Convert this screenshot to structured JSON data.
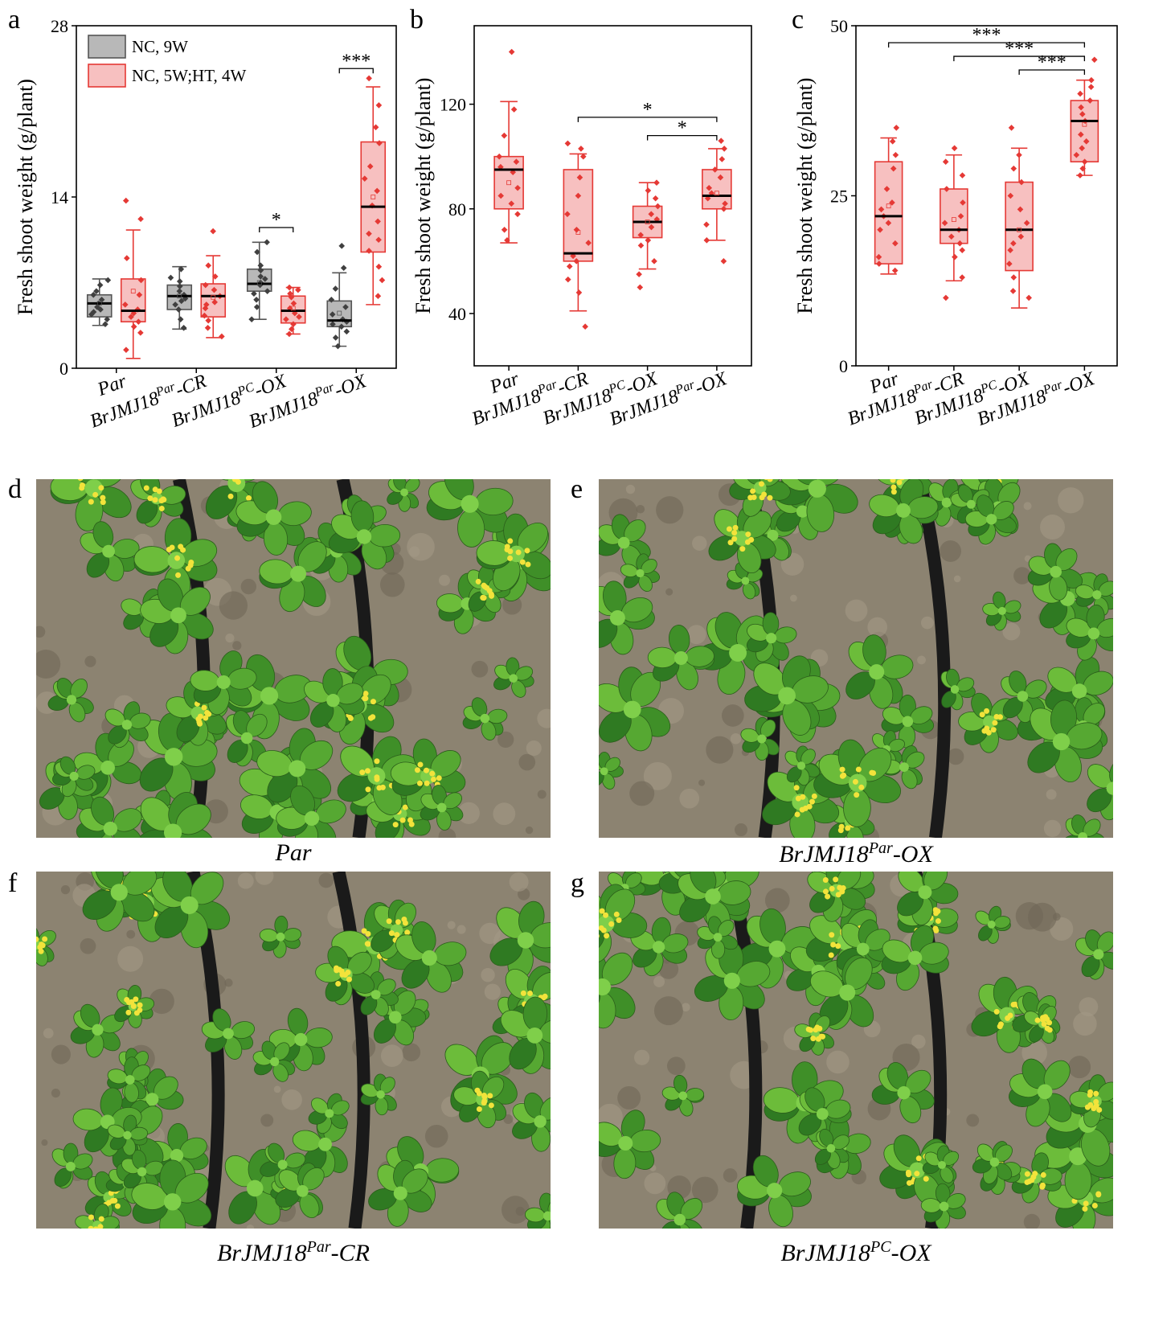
{
  "panels": {
    "a": "a",
    "b": "b",
    "c": "c",
    "d": "d",
    "e": "e",
    "f": "f",
    "g": "g"
  },
  "colors": {
    "gray_fill": "#b8b8b8",
    "gray_stroke": "#555555",
    "gray_point": "#404040",
    "red_fill": "#f7c0c0",
    "red_stroke": "#e53935",
    "red_point": "#e53935"
  },
  "photo_captions": {
    "d": {
      "base": "Par",
      "sup": "",
      "rest": ""
    },
    "e": {
      "base": "BrJMJ18",
      "sup": "Par",
      "rest": "-OX"
    },
    "f": {
      "base": "BrJMJ18",
      "sup": "Par",
      "rest": "-CR"
    },
    "g": {
      "base": "BrJMJ18",
      "sup": "PC",
      "rest": "-OX"
    }
  },
  "chart_data": [
    {
      "panel": "a",
      "type": "box",
      "ylabel": "Fresh shoot weight (g/plant)",
      "ylim": [
        0,
        28
      ],
      "yticks": [
        0,
        14,
        28
      ],
      "categories": [
        {
          "base": "Par",
          "sup": "",
          "rest": ""
        },
        {
          "base": "BrJMJ18",
          "sup": "Par",
          "rest": "-CR"
        },
        {
          "base": "BrJMJ18",
          "sup": "PC",
          "rest": "-OX"
        },
        {
          "base": "BrJMJ18",
          "sup": "Par",
          "rest": "-OX"
        }
      ],
      "legend": {
        "position": "top-left",
        "entries": [
          "NC, 9W",
          "NC, 5W;HT, 4W"
        ]
      },
      "series": [
        {
          "name": "NC, 9W",
          "color": "gray",
          "boxes": [
            {
              "min": 3.5,
              "q1": 4.2,
              "median": 5.3,
              "q3": 6.0,
              "max": 7.3,
              "mean": 5.3,
              "points": [
                4.0,
                4.4,
                4.8,
                5.0,
                5.3,
                5.6,
                6.0,
                6.3,
                6.8,
                7.2,
                3.6,
                4.6
              ]
            },
            {
              "min": 3.2,
              "q1": 4.8,
              "median": 5.9,
              "q3": 6.8,
              "max": 8.3,
              "mean": 5.9,
              "points": [
                3.3,
                4.0,
                4.8,
                5.2,
                5.7,
                6.0,
                6.3,
                6.7,
                7.1,
                7.4,
                8.1,
                5.5
              ]
            },
            {
              "min": 4.0,
              "q1": 6.3,
              "median": 6.9,
              "q3": 8.1,
              "max": 10.3,
              "mean": 7.0,
              "points": [
                4.0,
                5.0,
                5.6,
                6.3,
                6.8,
                7.0,
                7.5,
                8.0,
                8.4,
                9.5,
                10.3,
                7.3,
                6.1
              ]
            },
            {
              "min": 1.8,
              "q1": 3.4,
              "median": 3.9,
              "q3": 5.5,
              "max": 7.8,
              "mean": 4.5,
              "points": [
                1.8,
                2.5,
                3.0,
                3.4,
                3.8,
                4.0,
                4.4,
                5.0,
                5.6,
                6.5,
                8.2,
                10.0,
                3.6
              ]
            }
          ]
        },
        {
          "name": "NC, 5W;HT, 4W",
          "color": "red",
          "boxes": [
            {
              "min": 0.8,
              "q1": 3.8,
              "median": 4.7,
              "q3": 7.3,
              "max": 11.3,
              "mean": 6.3,
              "points": [
                1.5,
                2.9,
                3.4,
                3.8,
                4.2,
                4.8,
                5.2,
                6.0,
                7.2,
                9.0,
                12.2,
                13.7,
                4.5
              ]
            },
            {
              "min": 2.5,
              "q1": 4.2,
              "median": 5.9,
              "q3": 6.9,
              "max": 9.2,
              "mean": 5.8,
              "points": [
                2.6,
                3.3,
                3.9,
                4.3,
                4.9,
                5.4,
                5.9,
                6.4,
                6.8,
                7.5,
                8.4,
                11.2,
                5.2
              ]
            },
            {
              "min": 2.8,
              "q1": 3.7,
              "median": 4.7,
              "q3": 5.9,
              "max": 6.6,
              "mean": 4.9,
              "points": [
                2.8,
                3.2,
                3.6,
                4.0,
                4.5,
                4.9,
                5.3,
                5.8,
                6.1,
                6.4,
                6.6,
                4.2
              ]
            },
            {
              "min": 5.2,
              "q1": 9.5,
              "median": 13.2,
              "q3": 18.5,
              "max": 23.0,
              "mean": 14.0,
              "points": [
                5.9,
                7.2,
                8.3,
                9.6,
                11.0,
                12.0,
                13.3,
                14.5,
                15.5,
                16.5,
                18.4,
                19.7,
                21.5,
                23.7,
                10.5
              ]
            }
          ]
        }
      ],
      "annotations": [
        {
          "label": "*",
          "from": 2,
          "to": 2,
          "value": 11.5
        },
        {
          "label": "***",
          "from": 3,
          "to": 3,
          "value": 24.5
        }
      ]
    },
    {
      "panel": "b",
      "type": "box",
      "ylabel": "Fresh shoot weight (g/plant)",
      "ylim": [
        20,
        150
      ],
      "yticks": [
        40,
        80,
        120
      ],
      "categories": [
        {
          "base": "Par",
          "sup": "",
          "rest": ""
        },
        {
          "base": "BrJMJ18",
          "sup": "Par",
          "rest": "-CR"
        },
        {
          "base": "BrJMJ18",
          "sup": "PC",
          "rest": "-OX"
        },
        {
          "base": "BrJMJ18",
          "sup": "Par",
          "rest": "-OX"
        }
      ],
      "series": [
        {
          "name": "",
          "color": "red",
          "boxes": [
            {
              "min": 67,
              "q1": 80,
              "median": 95,
              "q3": 100,
              "max": 121,
              "mean": 90,
              "points": [
                68,
                72,
                78,
                82,
                88,
                94,
                96,
                98,
                100,
                108,
                118,
                140,
                85
              ]
            },
            {
              "min": 41,
              "q1": 60,
              "median": 63,
              "q3": 95,
              "max": 101,
              "mean": 71,
              "points": [
                35,
                48,
                53,
                58,
                62,
                67,
                72,
                78,
                85,
                92,
                100,
                103,
                105,
                60
              ]
            },
            {
              "min": 57,
              "q1": 69,
              "median": 75,
              "q3": 81,
              "max": 90,
              "mean": 75,
              "points": [
                50,
                55,
                60,
                66,
                70,
                73,
                76,
                78,
                81,
                84,
                87,
                90,
                68
              ]
            },
            {
              "min": 68,
              "q1": 80,
              "median": 85,
              "q3": 95,
              "max": 103,
              "mean": 86,
              "points": [
                60,
                68,
                74,
                80,
                84,
                86,
                88,
                92,
                95,
                99,
                103,
                106,
                82
              ]
            }
          ]
        }
      ],
      "annotations": [
        {
          "label": "*",
          "from": 1,
          "to": 3,
          "value": 115
        },
        {
          "label": "*",
          "from": 2,
          "to": 3,
          "value": 108
        }
      ]
    },
    {
      "panel": "c",
      "type": "box",
      "ylabel": "Fresh shoot weight (g/plant)",
      "ylim": [
        0,
        50
      ],
      "yticks": [
        0,
        25,
        50
      ],
      "categories": [
        {
          "base": "Par",
          "sup": "",
          "rest": ""
        },
        {
          "base": "BrJMJ18",
          "sup": "Par",
          "rest": "-CR"
        },
        {
          "base": "BrJMJ18",
          "sup": "PC",
          "rest": "-OX"
        },
        {
          "base": "BrJMJ18",
          "sup": "Par",
          "rest": "-OX"
        }
      ],
      "series": [
        {
          "name": "",
          "color": "red",
          "boxes": [
            {
              "min": 13.5,
              "q1": 15,
              "median": 22,
              "q3": 30,
              "max": 33.5,
              "mean": 23.5,
              "points": [
                14,
                15,
                16,
                18,
                20,
                22,
                23,
                24,
                26,
                29,
                31,
                33,
                35,
                21
              ]
            },
            {
              "min": 12.5,
              "q1": 18,
              "median": 20,
              "q3": 26,
              "max": 31,
              "mean": 21.5,
              "points": [
                10,
                13,
                16,
                18,
                19,
                20,
                21,
                22,
                24,
                26,
                28,
                30,
                32,
                17
              ]
            },
            {
              "min": 8.5,
              "q1": 14,
              "median": 20,
              "q3": 27,
              "max": 32,
              "mean": 20,
              "points": [
                10,
                11,
                13,
                15,
                17,
                19,
                21,
                23,
                25,
                27,
                29,
                31,
                35,
                18
              ]
            },
            {
              "min": 28,
              "q1": 30,
              "median": 36,
              "q3": 39,
              "max": 42,
              "mean": 35.5,
              "points": [
                28,
                29,
                30,
                31,
                33,
                34,
                36,
                37,
                38,
                39,
                40,
                41,
                42,
                45,
                32
              ]
            }
          ]
        }
      ],
      "annotations": [
        {
          "label": "***",
          "from": 0,
          "to": 3,
          "value": 47.5
        },
        {
          "label": "***",
          "from": 1,
          "to": 3,
          "value": 45.5
        },
        {
          "label": "***",
          "from": 2,
          "to": 3,
          "value": 43.5
        }
      ]
    }
  ]
}
